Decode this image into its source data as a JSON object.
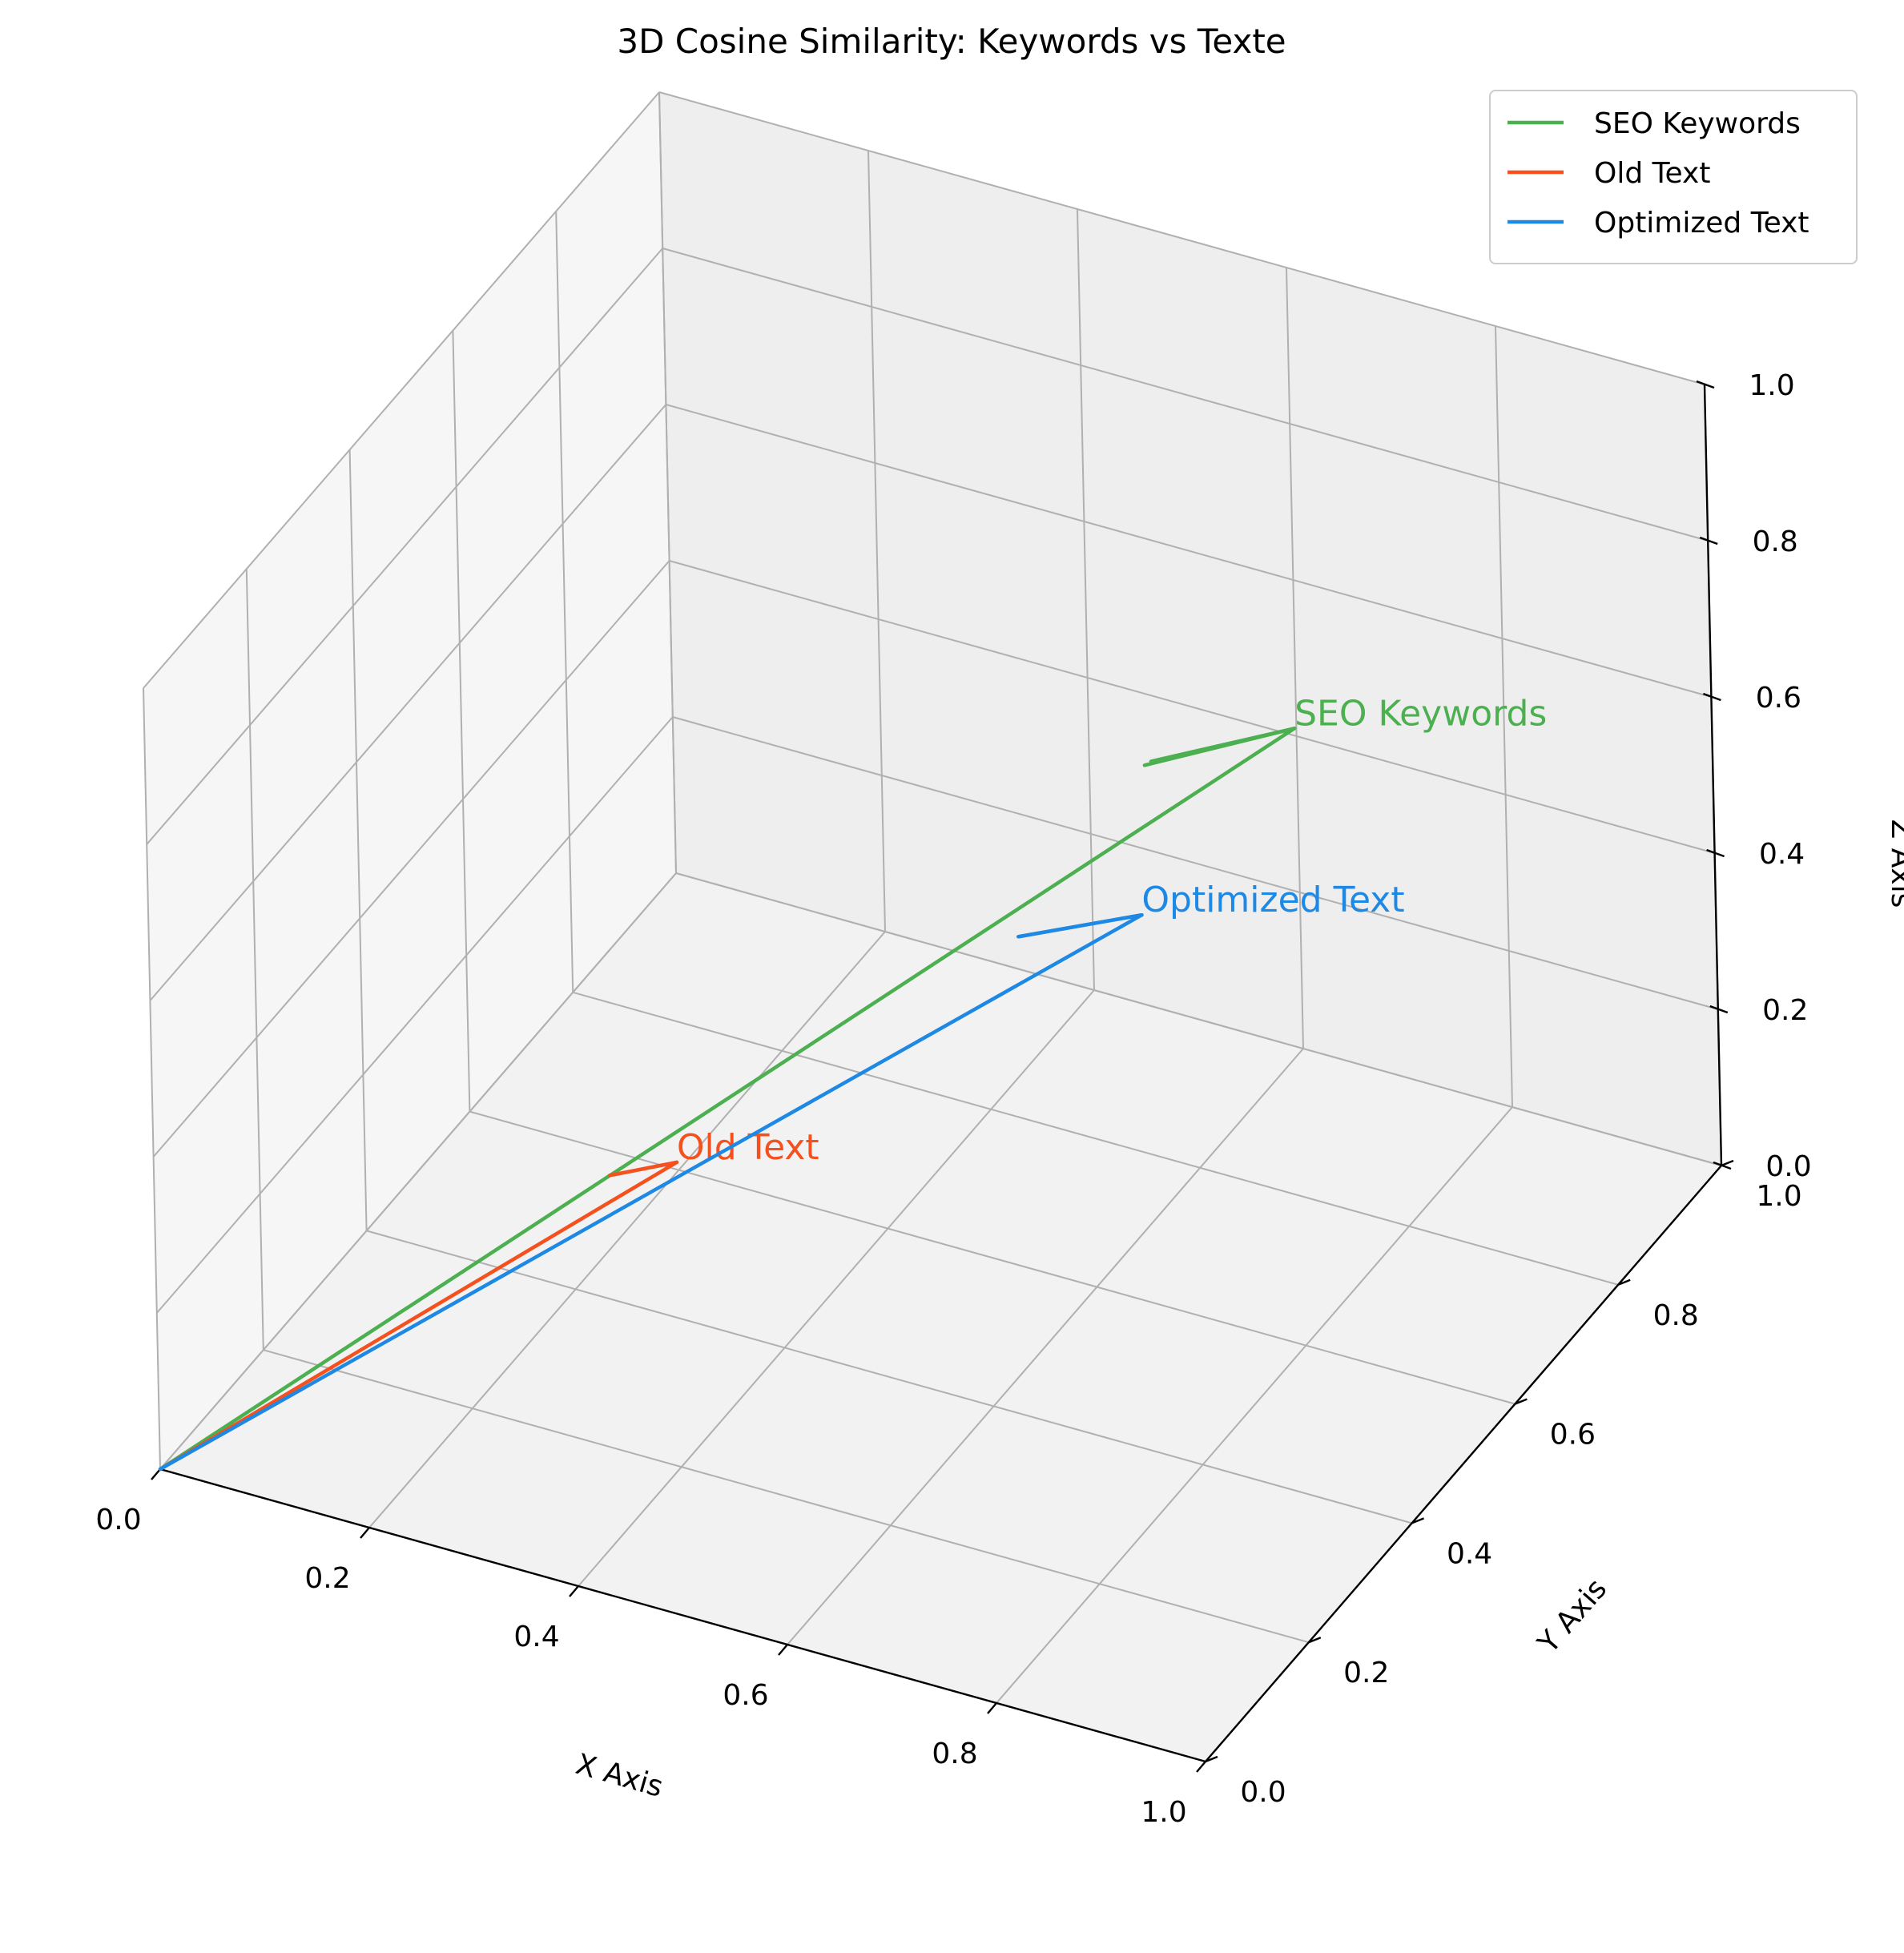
{
  "chart_data": {
    "type": "3d-vector",
    "title": "3D Cosine Similarity: Keywords vs Texte",
    "xlabel": "X Axis",
    "ylabel": "Y Axis",
    "zlabel": "Z Axis",
    "xlim": [
      0,
      1
    ],
    "ylim": [
      0,
      1
    ],
    "zlim": [
      0,
      1
    ],
    "ticks": [
      "0.0",
      "0.2",
      "0.4",
      "0.6",
      "0.8",
      "1.0"
    ],
    "grid": true,
    "legend_position": "top-right",
    "series": [
      {
        "name": "SEO Keywords",
        "color": "#4caf50",
        "vector": [
          0.7,
          0.8,
          0.6
        ],
        "label": "SEO Keywords"
      },
      {
        "name": "Old Text",
        "color": "#f4511e",
        "vector": [
          0.3,
          0.4,
          0.2
        ],
        "label": "Old Text"
      },
      {
        "name": "Optimized Text",
        "color": "#1e88e5",
        "vector": [
          0.6,
          0.7,
          0.4
        ],
        "label": "Optimized Text"
      }
    ]
  }
}
